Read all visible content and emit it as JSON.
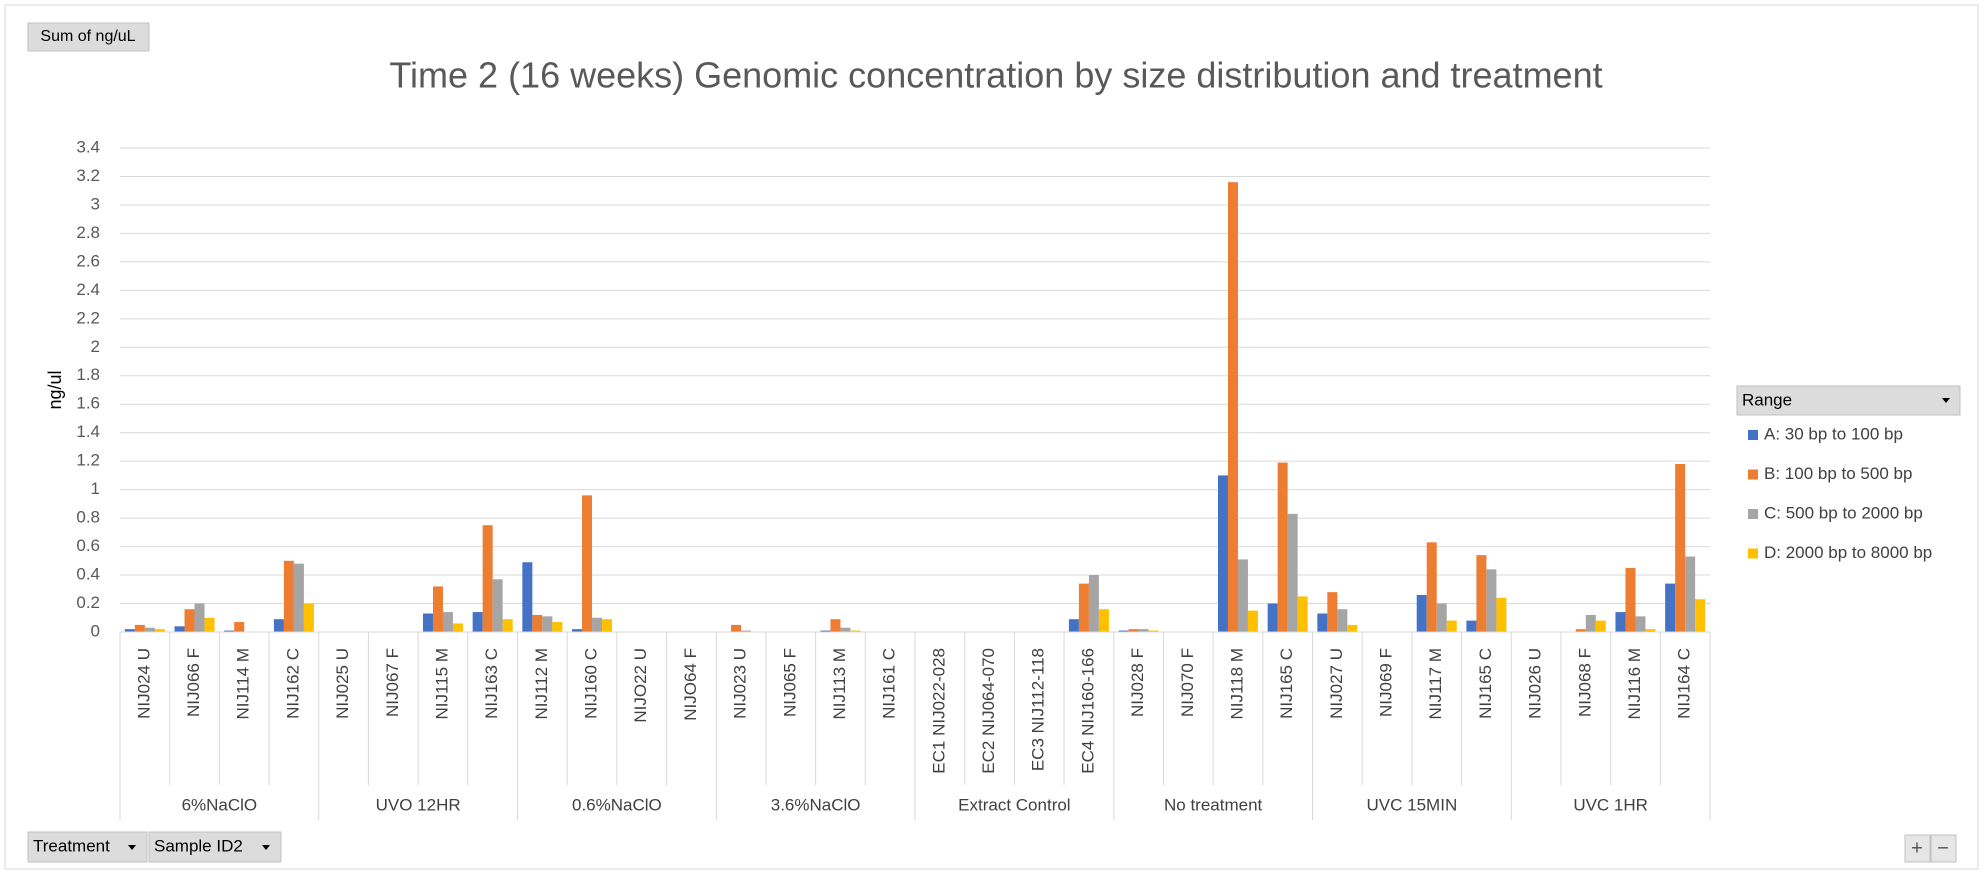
{
  "chart_data": {
    "type": "bar",
    "title": "Time 2 (16 weeks) Genomic concentration by size distribution and treatment",
    "y_label": "ng/ul",
    "ylim": [
      0,
      3.4
    ],
    "yticks": [
      0,
      0.2,
      0.4,
      0.6,
      0.8,
      1,
      1.2,
      1.4,
      1.6,
      1.8,
      2,
      2.2,
      2.4,
      2.6,
      2.8,
      3,
      3.2,
      3.4
    ],
    "grid": true,
    "legend_title": "Range",
    "legend_position": "right",
    "groups": [
      {
        "name": "6%NaClO",
        "categories": [
          "NIJ024 U",
          "NIJ066 F",
          "NIJ114 M",
          "NIJ162 C"
        ]
      },
      {
        "name": "UVO 12HR",
        "categories": [
          "NIJ025 U",
          "NIJ067 F",
          "NIJ115 M",
          "NIJ163 C"
        ]
      },
      {
        "name": "0.6%NaClO",
        "categories": [
          "NIJ112 M",
          "NIJ160 C",
          "NIJO22 U",
          "NIJO64 F"
        ]
      },
      {
        "name": "3.6%NaClO",
        "categories": [
          "NIJ023 U",
          "NIJ065 F",
          "NIJ113 M",
          "NIJ161 C"
        ]
      },
      {
        "name": "Extract Control",
        "categories": [
          "EC1 NIJ022-028",
          "EC2 NIJ064-070",
          "EC3 NIJ112-118",
          "EC4 NIJ160-166"
        ]
      },
      {
        "name": "No treatment",
        "categories": [
          "NIJ028 F",
          "NIJ070 F",
          "NIJ118 M",
          "NIJ165 C"
        ]
      },
      {
        "name": "UVC 15MIN",
        "categories": [
          "NIJ027 U",
          "NIJ069 F",
          "NIJ117 M",
          "NIJ165 C"
        ]
      },
      {
        "name": "UVC 1HR",
        "categories": [
          "NIJ026 U",
          "NIJ068 F",
          "NIJ116 M",
          "NIJ164 C"
        ]
      }
    ],
    "series": [
      {
        "name": "A: 30 bp to 100 bp",
        "color": "#4472C4",
        "values": [
          0.02,
          0.04,
          0.01,
          0.09,
          null,
          null,
          0.13,
          0.14,
          0.49,
          0.02,
          null,
          null,
          0,
          null,
          0.01,
          null,
          null,
          null,
          null,
          0.09,
          0.01,
          null,
          1.1,
          0.2,
          0.13,
          null,
          0.26,
          0.08,
          null,
          0,
          0.14,
          0.34
        ]
      },
      {
        "name": "B: 100 bp to 500 bp",
        "color": "#ED7D31",
        "values": [
          0.05,
          0.16,
          0.07,
          0.5,
          null,
          null,
          0.32,
          0.75,
          0.12,
          0.96,
          null,
          null,
          0.05,
          null,
          0.09,
          null,
          null,
          null,
          null,
          0.34,
          0.02,
          null,
          3.16,
          1.19,
          0.28,
          null,
          0.63,
          0.54,
          null,
          0.02,
          0.45,
          1.18
        ]
      },
      {
        "name": "C: 500 bp to 2000 bp",
        "color": "#A5A5A5",
        "values": [
          0.03,
          0.2,
          0,
          0.48,
          null,
          null,
          0.14,
          0.37,
          0.11,
          0.1,
          null,
          null,
          0.01,
          null,
          0.03,
          null,
          null,
          null,
          null,
          0.4,
          0.02,
          null,
          0.51,
          0.83,
          0.16,
          null,
          0.2,
          0.44,
          null,
          0.12,
          0.11,
          0.53
        ]
      },
      {
        "name": "D: 2000 bp to 8000 bp",
        "color": "#FFC000",
        "values": [
          0.02,
          0.1,
          0,
          0.2,
          null,
          null,
          0.06,
          0.09,
          0.07,
          0.09,
          null,
          null,
          0,
          null,
          0.01,
          null,
          null,
          null,
          null,
          0.16,
          0.01,
          null,
          0.15,
          0.25,
          0.05,
          null,
          0.08,
          0.24,
          null,
          0.08,
          0.02,
          0.23
        ]
      }
    ]
  },
  "ui": {
    "value_field": "Sum of ng/uL",
    "axis_fields": [
      "Treatment",
      "Sample ID2"
    ],
    "zoom_buttons": [
      "+",
      "−"
    ]
  }
}
